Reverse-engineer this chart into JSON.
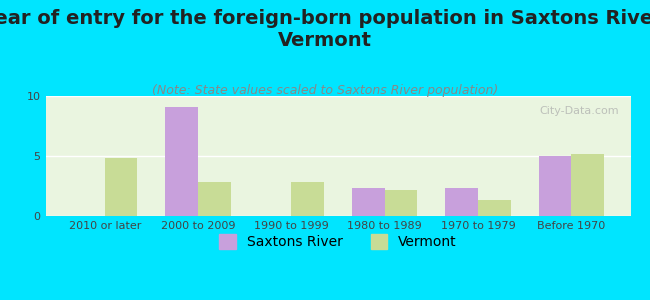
{
  "title": "Year of entry for the foreign-born population in Saxtons River,\nVermont",
  "subtitle": "(Note: State values scaled to Saxtons River population)",
  "categories": [
    "2010 or later",
    "2000 to 2009",
    "1990 to 1999",
    "1980 to 1989",
    "1970 to 1979",
    "Before 1970"
  ],
  "saxtons_river": [
    0,
    9.1,
    0,
    2.3,
    2.3,
    5.0
  ],
  "vermont": [
    4.8,
    2.8,
    2.8,
    2.2,
    1.3,
    5.2
  ],
  "saxtons_color": "#c8a0dc",
  "vermont_color": "#c8dc96",
  "background_color": "#00e5ff",
  "plot_bg_gradient_top": "#e8f5e0",
  "plot_bg_gradient_bottom": "#f0ffe8",
  "ylim": [
    0,
    10
  ],
  "yticks": [
    0,
    5,
    10
  ],
  "bar_width": 0.35,
  "title_fontsize": 14,
  "subtitle_fontsize": 9,
  "tick_fontsize": 8,
  "legend_fontsize": 10,
  "watermark": "City-Data.com"
}
